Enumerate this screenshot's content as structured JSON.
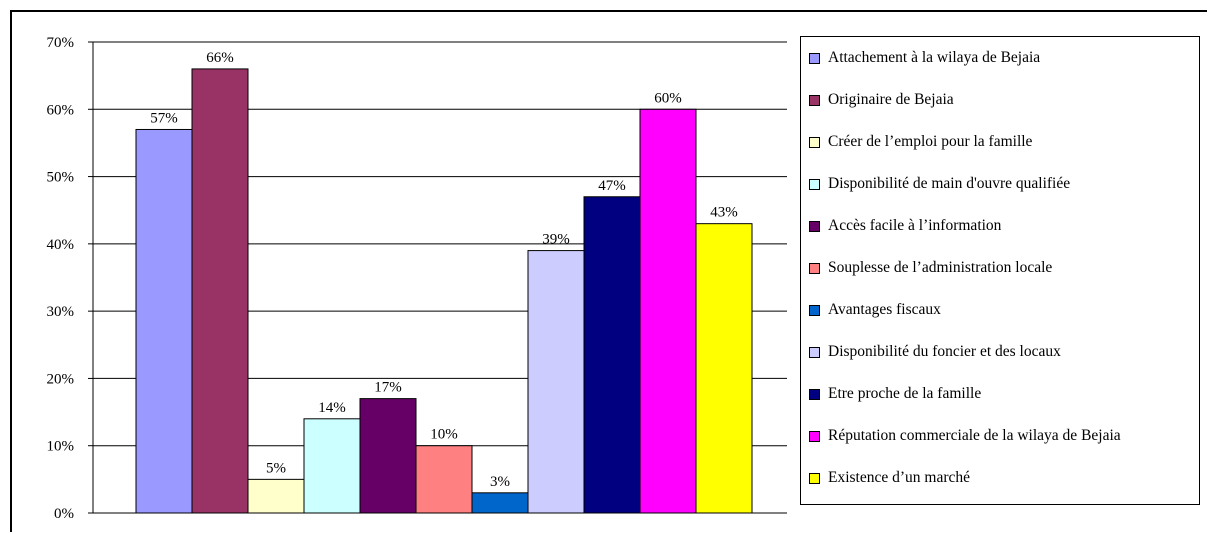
{
  "chart_data": {
    "type": "bar",
    "title": "",
    "xlabel": "",
    "ylabel": "",
    "ylim": [
      0,
      70
    ],
    "yticks": [
      "0%",
      "10%",
      "20%",
      "30%",
      "40%",
      "50%",
      "60%",
      "70%"
    ],
    "grid": true,
    "legend_position": "right",
    "series": [
      {
        "name": "Attachement à la wilaya de Bejaia",
        "value": 57,
        "label": "57%",
        "color": "#9999FF"
      },
      {
        "name": "Originaire de Bejaia",
        "value": 66,
        "label": "66%",
        "color": "#993366"
      },
      {
        "name": "Créer de l’emploi pour la famille",
        "value": 5,
        "label": "5%",
        "color": "#FFFFCC"
      },
      {
        "name": "Disponibilité de main d'ouvre qualifiée",
        "value": 14,
        "label": "14%",
        "color": "#CCFFFF"
      },
      {
        "name": "Accès facile à l’information",
        "value": 17,
        "label": "17%",
        "color": "#660066"
      },
      {
        "name": "Souplesse de l’administration locale",
        "value": 10,
        "label": "10%",
        "color": "#FF8080"
      },
      {
        "name": "Avantages fiscaux",
        "value": 3,
        "label": "3%",
        "color": "#0066CC"
      },
      {
        "name": "Disponibilité du foncier et des locaux",
        "value": 39,
        "label": "39%",
        "color": "#CCCCFF"
      },
      {
        "name": "Etre proche de la famille",
        "value": 47,
        "label": "47%",
        "color": "#000080"
      },
      {
        "name": "Réputation commerciale de la wilaya de Bejaia",
        "value": 60,
        "label": "60%",
        "color": "#FF00FF"
      },
      {
        "name": "Existence d’un marché",
        "value": 43,
        "label": "43%",
        "color": "#FFFF00"
      }
    ]
  }
}
